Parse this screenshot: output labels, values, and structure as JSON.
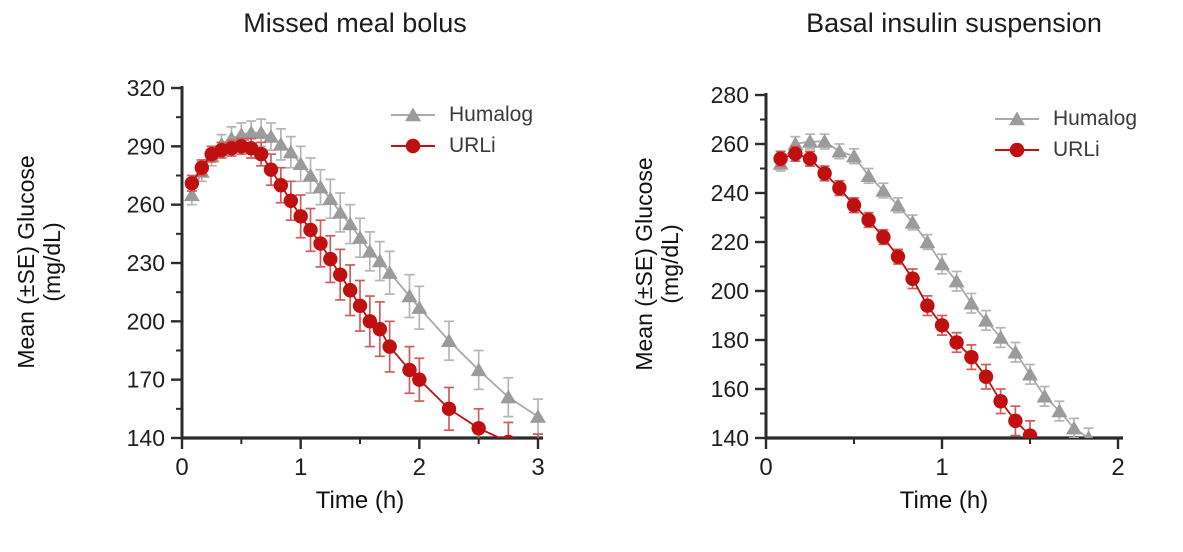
{
  "chart_data": [
    {
      "type": "line",
      "title": "Missed meal bolus",
      "xlabel": "Time (h)",
      "ylabel": "Mean (±SE) Glucose (mg/dL)",
      "ylabel_line1": "Mean (±SE) Glucose",
      "ylabel_line2": "(mg/dL)",
      "xlim": [
        0,
        3
      ],
      "ylim": [
        140,
        320
      ],
      "xticks_major": [
        0,
        1,
        2,
        3
      ],
      "xticks_minor": [
        0.5,
        1.5,
        2.5
      ],
      "yticks_major": [
        140,
        170,
        200,
        230,
        260,
        290,
        320
      ],
      "yticks_minor": [
        155,
        185,
        215,
        245,
        275,
        305
      ],
      "grid": false,
      "legend_position": "top-right",
      "error_bars": "±SE",
      "series": [
        {
          "name": "Humalog",
          "marker": "triangle",
          "marker_color": "#9b9b9b",
          "line_color": "#a9a9a9",
          "errorbar_color": "#b5b5b5",
          "x": [
            0.083,
            0.167,
            0.25,
            0.333,
            0.417,
            0.5,
            0.583,
            0.667,
            0.75,
            0.833,
            0.917,
            1.0,
            1.083,
            1.167,
            1.25,
            1.333,
            1.417,
            1.5,
            1.583,
            1.667,
            1.75,
            1.917,
            2.0,
            2.25,
            2.5,
            2.75,
            3.0
          ],
          "values": [
            265,
            277,
            285,
            291,
            294,
            296,
            297,
            297,
            295,
            291,
            287,
            281,
            275,
            269,
            263,
            256,
            250,
            243,
            236,
            231,
            225,
            213,
            207,
            190,
            175,
            161,
            151
          ],
          "se": [
            5,
            5,
            5,
            5,
            6,
            6,
            6,
            7,
            7,
            8,
            8,
            9,
            9,
            9,
            10,
            10,
            10,
            10,
            10,
            10,
            11,
            11,
            11,
            10,
            10,
            10,
            9
          ]
        },
        {
          "name": "URLi",
          "marker": "circle",
          "marker_color": "#c00f0f",
          "line_color": "#c01212",
          "errorbar_color": "#d15b5b",
          "x": [
            0.083,
            0.167,
            0.25,
            0.333,
            0.417,
            0.5,
            0.583,
            0.667,
            0.75,
            0.833,
            0.917,
            1.0,
            1.083,
            1.167,
            1.25,
            1.333,
            1.417,
            1.5,
            1.583,
            1.667,
            1.75,
            1.917,
            2.0,
            2.25,
            2.5,
            2.75,
            3.0
          ],
          "values": [
            271,
            279,
            286,
            288,
            289,
            290,
            289,
            286,
            278,
            270,
            262,
            254,
            247,
            240,
            232,
            224,
            216,
            208,
            200,
            196,
            187,
            175,
            170,
            155,
            145,
            138,
            133
          ],
          "se": [
            4,
            4,
            4,
            4,
            4,
            4,
            5,
            6,
            8,
            9,
            10,
            11,
            11,
            12,
            12,
            13,
            13,
            13,
            13,
            14,
            13,
            12,
            11,
            11,
            10,
            10,
            9
          ]
        }
      ]
    },
    {
      "type": "line",
      "title": "Basal insulin suspension",
      "xlabel": "Time (h)",
      "ylabel": "Mean (±SE) Glucose (mg/dL)",
      "ylabel_line1": "Mean (±SE) Glucose",
      "ylabel_line2": "(mg/dL)",
      "xlim": [
        0,
        2
      ],
      "ylim": [
        140,
        280
      ],
      "xticks_major": [
        0,
        1,
        2
      ],
      "xticks_minor": [
        0.5,
        1.5
      ],
      "yticks_major": [
        140,
        160,
        180,
        200,
        220,
        240,
        260,
        280
      ],
      "yticks_minor": [
        150,
        170,
        190,
        210,
        230,
        250,
        270
      ],
      "grid": false,
      "legend_position": "top-right",
      "error_bars": "±SE",
      "series": [
        {
          "name": "Humalog",
          "marker": "triangle",
          "marker_color": "#9b9b9b",
          "line_color": "#a9a9a9",
          "errorbar_color": "#b5b5b5",
          "x": [
            0.083,
            0.167,
            0.25,
            0.333,
            0.417,
            0.5,
            0.583,
            0.667,
            0.75,
            0.833,
            0.917,
            1.0,
            1.083,
            1.167,
            1.25,
            1.333,
            1.417,
            1.5,
            1.583,
            1.667,
            1.75,
            1.833
          ],
          "values": [
            252,
            260,
            261,
            261,
            257,
            255,
            247,
            241,
            235,
            228,
            220,
            211,
            204,
            195,
            188,
            181,
            175,
            166,
            157,
            151,
            144,
            140
          ],
          "se": [
            3,
            3,
            3,
            3,
            3,
            3,
            3,
            3,
            3,
            3,
            3,
            4,
            4,
            4,
            4,
            4,
            4,
            4,
            4,
            4,
            4,
            4
          ]
        },
        {
          "name": "URLi",
          "marker": "circle",
          "marker_color": "#c00f0f",
          "line_color": "#c01212",
          "errorbar_color": "#d15b5b",
          "x": [
            0.083,
            0.167,
            0.25,
            0.333,
            0.417,
            0.5,
            0.583,
            0.667,
            0.75,
            0.833,
            0.917,
            1.0,
            1.083,
            1.167,
            1.25,
            1.333,
            1.417,
            1.5
          ],
          "values": [
            254,
            256,
            254,
            248,
            242,
            235,
            229,
            222,
            214,
            205,
            194,
            186,
            179,
            173,
            165,
            155,
            147,
            141
          ],
          "se": [
            3,
            3,
            3,
            3,
            3,
            3,
            3,
            3,
            3,
            4,
            4,
            4,
            4,
            5,
            5,
            5,
            6,
            6
          ]
        }
      ]
    }
  ]
}
